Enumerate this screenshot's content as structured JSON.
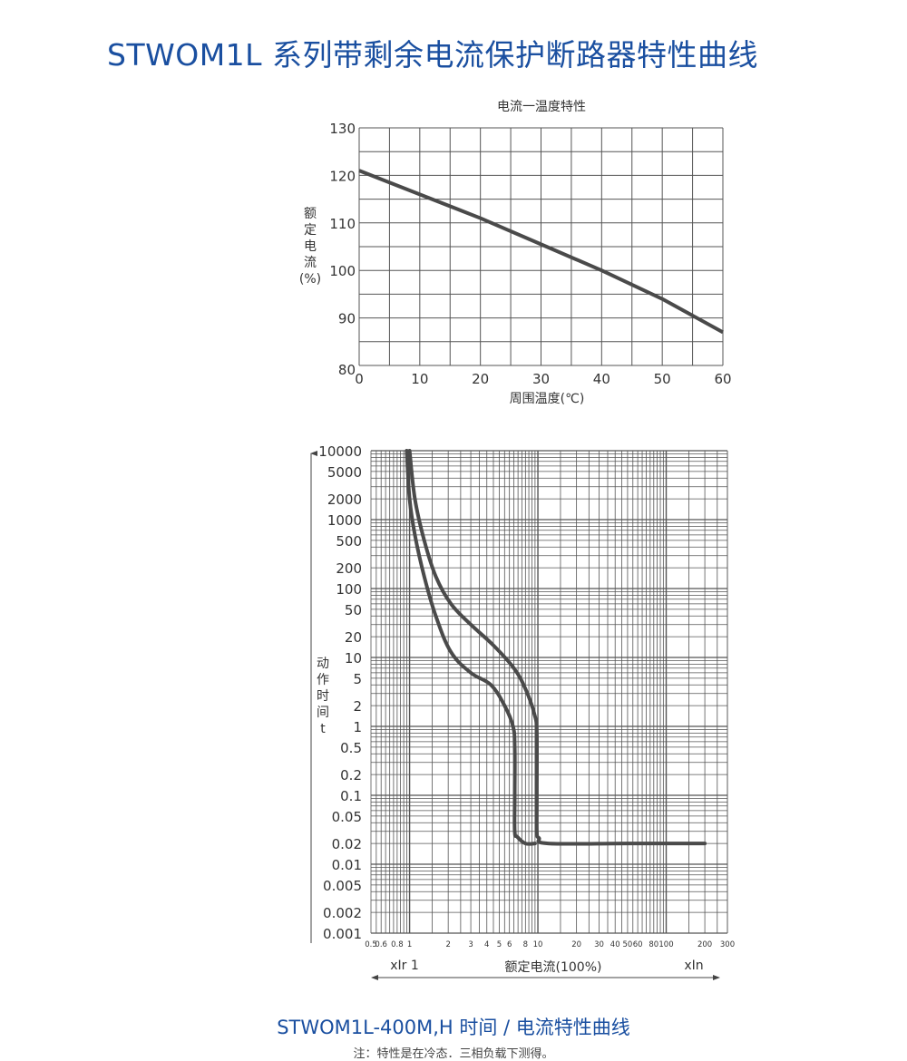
{
  "header": {
    "title": "STWOM1L 系列带剩余电流保护断路器特性曲线"
  },
  "footer": {
    "caption": "STWOM1L-400M,H 时间 / 电流特性曲线",
    "note": "注：特性是在冷态．三相负载下测得。"
  },
  "chart_data": [
    {
      "type": "line",
      "title": "电流一温度特性",
      "xlabel": "周围温度(℃)",
      "ylabel": [
        "额",
        "定",
        "电",
        "流",
        "(%)"
      ],
      "xlim": [
        0,
        60
      ],
      "ylim": [
        80,
        130
      ],
      "x_ticks": [
        0,
        10,
        20,
        30,
        40,
        50,
        60
      ],
      "y_ticks": [
        80,
        90,
        100,
        110,
        120,
        130
      ],
      "grid": true,
      "series": [
        {
          "x": [
            0,
            10,
            20,
            30,
            40,
            50,
            60
          ],
          "y": [
            121,
            116,
            111,
            105.5,
            100,
            94,
            87
          ]
        }
      ]
    },
    {
      "type": "line",
      "log_x": true,
      "log_y": true,
      "xlabel": "额定电流(100%)",
      "xlabel_left": "xIr 1",
      "xlabel_right": "xIn",
      "ylabel": [
        "动",
        "作",
        "时",
        "间",
        "t"
      ],
      "xlim": [
        0.5,
        300
      ],
      "ylim": [
        0.001,
        10000
      ],
      "x_tick_labels": [
        "0.5",
        "0.6",
        "0.8",
        "1",
        "2",
        "3",
        "4",
        "5",
        "6",
        "8",
        "10",
        "20",
        "30",
        "40",
        "50",
        "60",
        "80",
        "100",
        "200",
        "300"
      ],
      "y_tick_labels": [
        "10000",
        "5000",
        "2000",
        "1000",
        "500",
        "200",
        "100",
        "50",
        "20",
        "10",
        "5",
        "2",
        "1",
        "0.5",
        "0.2",
        "0.1",
        "0.05",
        "0.02",
        "0.01",
        "0.005",
        "0.002",
        "0.001"
      ],
      "grid": true,
      "series": [
        {
          "x": [
            0.95,
            1.0,
            1.1,
            1.3,
            1.6,
            2.1,
            3.0,
            4.3,
            5.5,
            6.4,
            6.6,
            6.6,
            6.6,
            6.9,
            8.0,
            9.5
          ],
          "y": [
            10000,
            2000,
            600,
            150,
            40,
            12,
            6,
            4,
            2,
            1,
            0.5,
            0.1,
            0.03,
            0.025,
            0.02,
            0.02
          ]
        },
        {
          "x": [
            1.0,
            1.1,
            1.3,
            1.6,
            2.1,
            3.0,
            4.5,
            6.5,
            8.0,
            9.4,
            9.8,
            9.8,
            9.8,
            10.2,
            12.0,
            50,
            200
          ],
          "y": [
            10000,
            2000,
            500,
            150,
            60,
            30,
            15,
            7,
            3.5,
            1.5,
            0.8,
            0.1,
            0.03,
            0.024,
            0.02,
            0.02,
            0.02
          ]
        }
      ]
    }
  ]
}
